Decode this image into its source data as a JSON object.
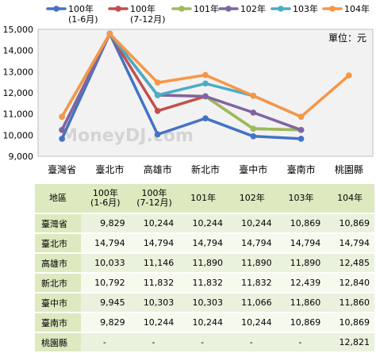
{
  "chart_data": {
    "type": "line",
    "categories": [
      "臺灣省",
      "臺北市",
      "高雄市",
      "新北市",
      "臺中市",
      "臺南市",
      "桃園縣"
    ],
    "ylim": [
      9000,
      15000
    ],
    "yticks": [
      "9,000",
      "10,000",
      "11,000",
      "12,000",
      "13,000",
      "14,000",
      "15,000"
    ],
    "unit_label": "單位：元",
    "watermark": "MoneyDJ.com",
    "grid": false,
    "legend_position": "top",
    "series": [
      {
        "name": "100年\n(1-6月)",
        "color": "#4472c4",
        "values": [
          9829,
          14794,
          10033,
          10792,
          9945,
          9829,
          null
        ]
      },
      {
        "name": "100年\n(7-12月)",
        "color": "#c0504d",
        "values": [
          10244,
          14794,
          11146,
          11832,
          10303,
          10244,
          null
        ]
      },
      {
        "name": "101年",
        "color": "#9bbb59",
        "values": [
          10244,
          14794,
          11890,
          11832,
          10303,
          10244,
          null
        ]
      },
      {
        "name": "102年",
        "color": "#8064a2",
        "values": [
          10244,
          14794,
          11890,
          11832,
          11066,
          10244,
          null
        ]
      },
      {
        "name": "103年",
        "color": "#4bacc6",
        "values": [
          10869,
          14794,
          11890,
          12439,
          11860,
          10869,
          null
        ]
      },
      {
        "name": "104年",
        "color": "#f79646",
        "values": [
          10869,
          14794,
          12485,
          12840,
          11860,
          10869,
          12821
        ]
      }
    ]
  },
  "table": {
    "header": {
      "region": "地區",
      "cols": [
        {
          "l1": "100年",
          "l2": "(1-6月)"
        },
        {
          "l1": "100年",
          "l2": "(7-12月)"
        },
        {
          "l1": "101年",
          "l2": ""
        },
        {
          "l1": "102年",
          "l2": ""
        },
        {
          "l1": "103年",
          "l2": ""
        },
        {
          "l1": "104年",
          "l2": ""
        }
      ]
    },
    "rows": [
      {
        "region": "臺灣省",
        "cells": [
          "9,829",
          "10,244",
          "10,244",
          "10,244",
          "10,869",
          "10,869"
        ]
      },
      {
        "region": "臺北市",
        "cells": [
          "14,794",
          "14,794",
          "14,794",
          "14,794",
          "14,794",
          "14,794"
        ]
      },
      {
        "region": "高雄市",
        "cells": [
          "10,033",
          "11,146",
          "11,890",
          "11,890",
          "11,890",
          "12,485"
        ]
      },
      {
        "region": "新北市",
        "cells": [
          "10,792",
          "11,832",
          "11,832",
          "11,832",
          "12,439",
          "12,840"
        ]
      },
      {
        "region": "臺中市",
        "cells": [
          "9,945",
          "10,303",
          "10,303",
          "11,066",
          "11,860",
          "11,860"
        ]
      },
      {
        "region": "臺南市",
        "cells": [
          "9,829",
          "10,244",
          "10,244",
          "10,244",
          "10,869",
          "10,869"
        ]
      },
      {
        "region": "桃園縣",
        "cells": [
          "-",
          "-",
          "-",
          "-",
          "-",
          "12,821"
        ]
      }
    ]
  }
}
